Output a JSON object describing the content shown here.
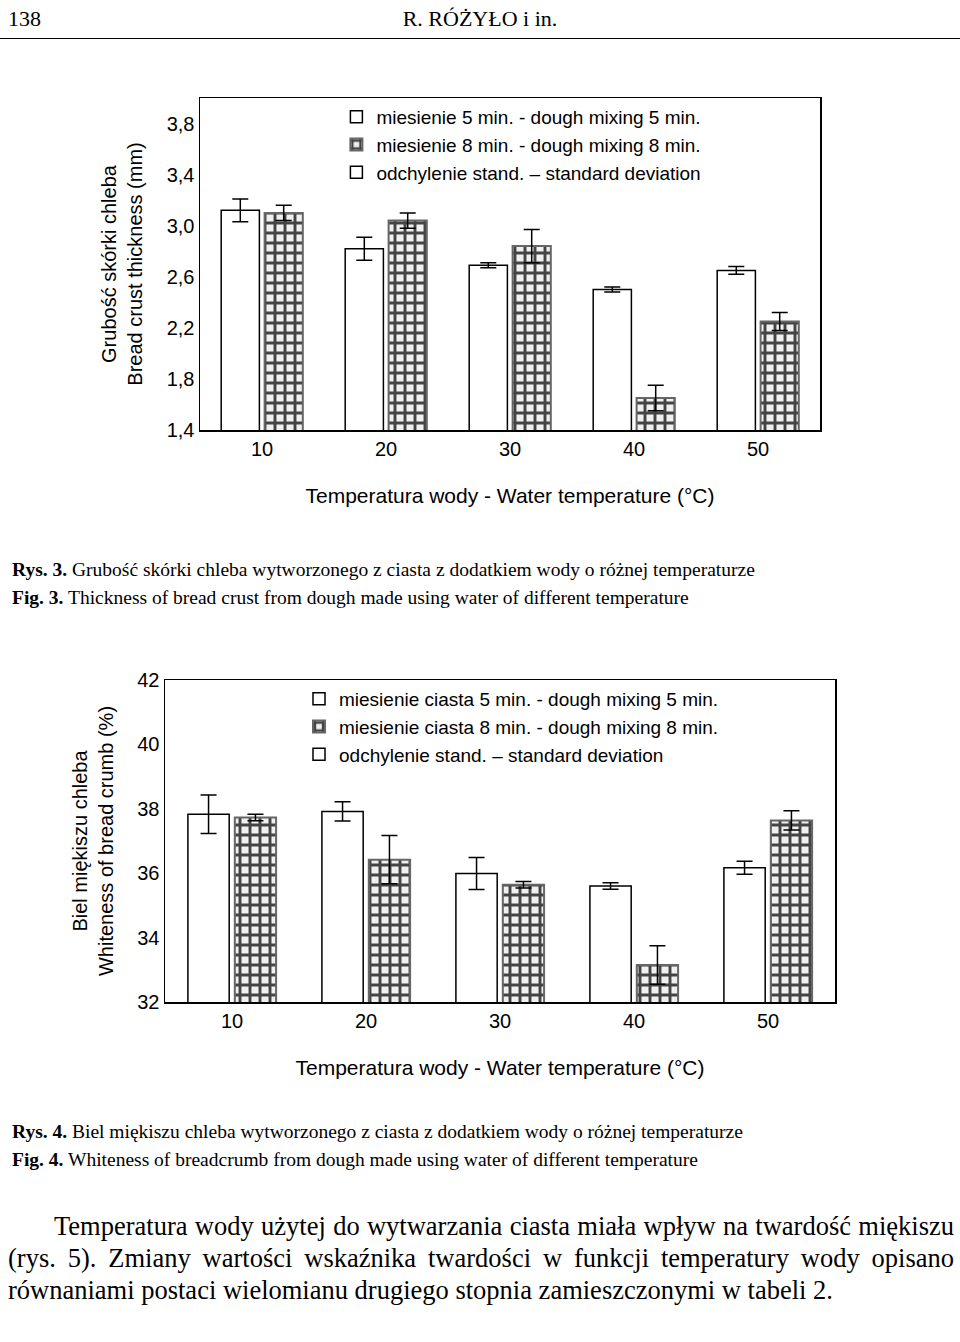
{
  "header": {
    "page": "138",
    "authors": "R. RÓŻYŁO i in."
  },
  "chart_data": [
    {
      "type": "bar",
      "categories": [
        "10",
        "20",
        "30",
        "40",
        "50"
      ],
      "x_label": "Temperatura wody - Water temperature (°C)",
      "y_label": [
        "Grubość skórki chleba",
        "Bread crust thickness (mm)"
      ],
      "ylim": [
        1.4,
        4.0
      ],
      "yticks": [
        {
          "value": 1.4,
          "label": "1,4"
        },
        {
          "value": 1.8,
          "label": "1,8"
        },
        {
          "value": 2.2,
          "label": "2,2"
        },
        {
          "value": 2.6,
          "label": "2,6"
        },
        {
          "value": 3.0,
          "label": "3,0"
        },
        {
          "value": 3.4,
          "label": "3,4"
        },
        {
          "value": 3.8,
          "label": "3,8"
        }
      ],
      "grid": false,
      "legend": "top",
      "error_label": "odchylenie stand. – standard deviation",
      "series": [
        {
          "name": "miesienie 5 min. - dough mixing 5 min.",
          "color": "#ffffff",
          "marker": "plain",
          "values": [
            3.12,
            2.82,
            2.69,
            2.5,
            2.65
          ],
          "errors": [
            0.09,
            0.09,
            0.02,
            0.02,
            0.03
          ]
        },
        {
          "name": "miesienie 8 min. - dough mixing 8 min.",
          "color": "#ffffff",
          "marker": "checkered",
          "values": [
            3.1,
            3.04,
            2.84,
            1.65,
            2.25
          ],
          "errors": [
            0.06,
            0.06,
            0.13,
            0.1,
            0.07
          ]
        }
      ],
      "caption": [
        {
          "label": "Rys. 3.",
          "text": "Grubość skórki chleba wytworzonego z ciasta z dodatkiem wody o różnej temperaturze"
        },
        {
          "label": "Fig. 3.",
          "text": "Thickness of bread crust from dough made using water of different temperature"
        }
      ]
    },
    {
      "type": "bar",
      "categories": [
        "10",
        "20",
        "30",
        "40",
        "50"
      ],
      "x_label": "Temperatura wody - Water temperature (°C)",
      "y_label": [
        "Biel miękiszu chleba",
        "Whiteness of bread crumb (%)"
      ],
      "ylim": [
        32,
        42
      ],
      "yticks": [
        32,
        34,
        36,
        38,
        40,
        42
      ],
      "grid": false,
      "legend": "top",
      "error_label": "odchylenie stand. – standard deviation",
      "series": [
        {
          "name": "miesienie ciasta 5 min. - dough mixing 5 min.",
          "color": "#ffffff",
          "marker": "plain",
          "values": [
            37.83,
            37.92,
            35.99,
            35.6,
            36.17
          ],
          "errors": [
            0.6,
            0.3,
            0.5,
            0.1,
            0.2
          ]
        },
        {
          "name": "miesienie ciasta 8 min. - dough mixing 8 min.",
          "color": "#ffffff",
          "marker": "checkered",
          "values": [
            37.73,
            36.42,
            35.64,
            33.15,
            37.64
          ],
          "errors": [
            0.1,
            0.75,
            0.1,
            0.6,
            0.3
          ]
        }
      ],
      "caption": [
        {
          "label": "Rys. 4.",
          "text": "Biel miękiszu chleba wytworzonego z ciasta z dodatkiem wody o różnej temperaturze"
        },
        {
          "label": "Fig. 4.",
          "text": "Whiteness of breadcrumb from dough made using water of different temperature"
        }
      ]
    }
  ],
  "paragraph": "Temperatura wody użytej do wytwarzania ciasta miała wpływ na twardość miękiszu (rys. 5). Zmiany wartości wskaźnika twardości w funkcji temperatury wody opisano równaniami postaci wielomianu drugiego stopnia zamieszczonymi w tabeli 2."
}
